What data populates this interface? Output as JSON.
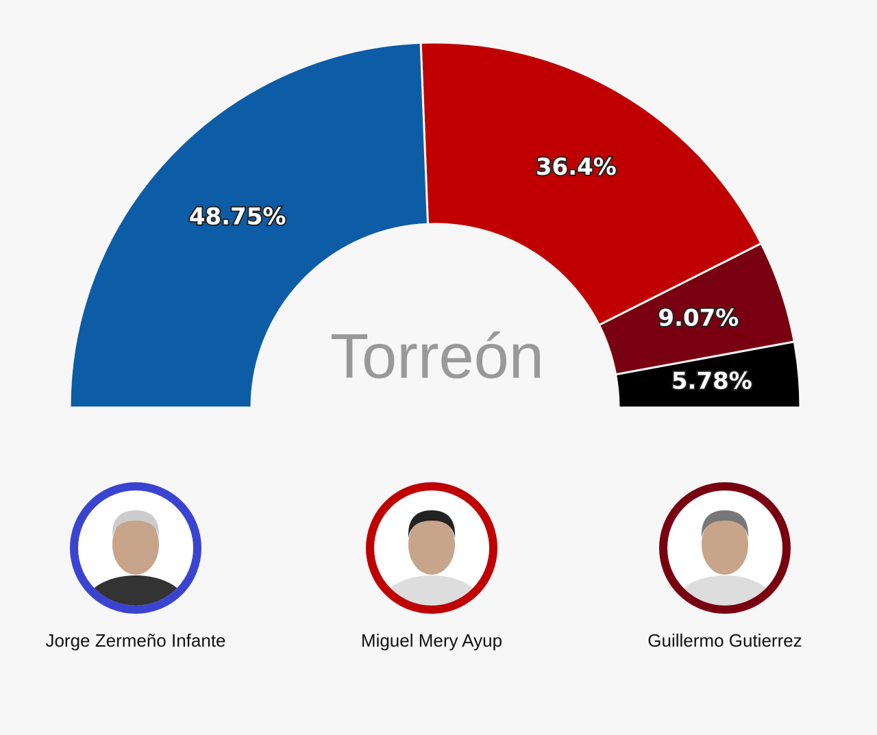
{
  "chart_data": {
    "type": "semi-donut",
    "title": "Torreón",
    "values": [
      48.75,
      36.4,
      9.07,
      5.78
    ],
    "value_labels": [
      "48.75%",
      "36.4%",
      "9.07%",
      "5.78%"
    ],
    "colors": [
      "#0d5ca6",
      "#c00000",
      "#780010",
      "#000000"
    ]
  },
  "candidates": [
    {
      "name": "Jorge Zermeño Infante",
      "color": "#3a44d0"
    },
    {
      "name": "Miguel Mery Ayup",
      "color": "#c00000"
    },
    {
      "name": "Guillermo Gutierrez",
      "color": "#780010"
    }
  ]
}
